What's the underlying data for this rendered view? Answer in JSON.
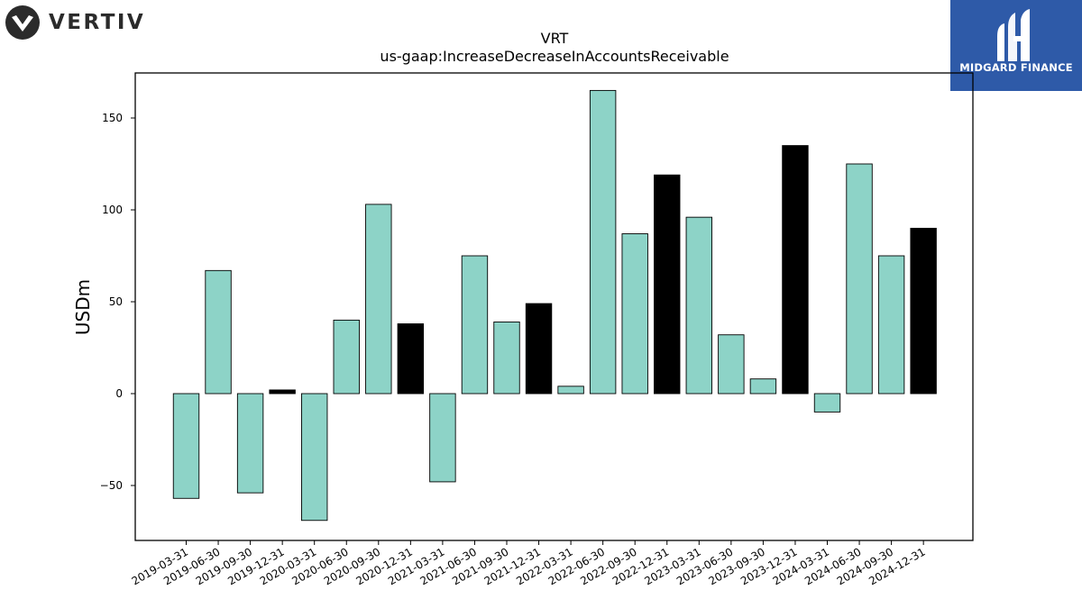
{
  "logos": {
    "left_text": "VERTIV",
    "right_text": "MIDGARD FINANCE"
  },
  "chart_data": {
    "type": "bar",
    "title": "VRT",
    "subtitle": "us-gaap:IncreaseDecreaseInAccountsReceivable",
    "xlabel": "",
    "ylabel": "USDm",
    "ylim": [
      -80,
      175
    ],
    "yticks": [
      -50,
      0,
      50,
      100,
      150
    ],
    "grid": false,
    "categories": [
      "2019-03-31",
      "2019-06-30",
      "2019-09-30",
      "2019-12-31",
      "2020-03-31",
      "2020-06-30",
      "2020-09-30",
      "2020-12-31",
      "2021-03-31",
      "2021-06-30",
      "2021-09-30",
      "2021-12-31",
      "2022-03-31",
      "2022-06-30",
      "2022-09-30",
      "2022-12-31",
      "2023-03-31",
      "2023-06-30",
      "2023-09-30",
      "2023-12-31",
      "2024-03-31",
      "2024-06-30",
      "2024-09-30",
      "2024-12-31"
    ],
    "values": [
      -57,
      67,
      -54,
      2,
      -69,
      40,
      103,
      38,
      -48,
      75,
      39,
      49,
      4,
      165,
      87,
      119,
      96,
      32,
      8,
      135,
      -10,
      125,
      75,
      90
    ],
    "colors": {
      "quarter": "#8dd3c7",
      "year_end": "#000000",
      "edge": "#000000"
    }
  }
}
